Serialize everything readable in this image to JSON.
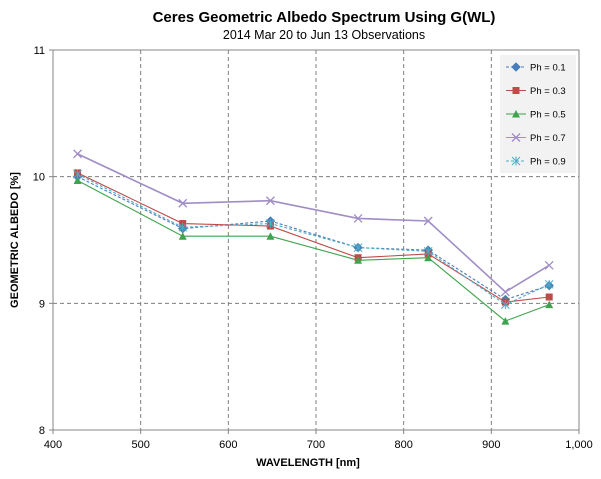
{
  "chart_data": {
    "type": "line",
    "title": "Ceres Geometric Albedo Spectrum Using G(WL)",
    "subtitle": "2014  Mar 20 to Jun 13 Observations",
    "xlabel": "WAVELENGTH [nm]",
    "ylabel": "GEOMETRIC ALBEDO [%]",
    "xlim": [
      400,
      1000
    ],
    "ylim": [
      8,
      11
    ],
    "x_ticks": [
      400,
      500,
      600,
      700,
      800,
      900,
      1000
    ],
    "x_tick_labels": [
      "400",
      "500",
      "600",
      "700",
      "800",
      "900",
      "1,000"
    ],
    "y_ticks": [
      8,
      9,
      10,
      11
    ],
    "y_tick_labels": [
      "8",
      "9",
      "10",
      "11"
    ],
    "grid": "dashed",
    "legend_position": "top-right",
    "x": [
      428,
      548,
      648,
      748,
      828,
      916,
      966
    ],
    "series": [
      {
        "name": "Ph = 0.1",
        "color": "#4a7ebb",
        "line": "dashed",
        "marker": "diamond",
        "values": [
          10.0,
          9.59,
          9.65,
          9.44,
          9.42,
          9.03,
          9.14
        ]
      },
      {
        "name": "Ph = 0.3",
        "color": "#be4b48",
        "line": "solid",
        "marker": "square",
        "values": [
          10.03,
          9.63,
          9.61,
          9.36,
          9.39,
          9.01,
          9.05
        ]
      },
      {
        "name": "Ph = 0.5",
        "color": "#3fa34d",
        "line": "solid",
        "marker": "triangle",
        "values": [
          9.97,
          9.53,
          9.53,
          9.34,
          9.36,
          8.86,
          8.99
        ]
      },
      {
        "name": "Ph = 0.7",
        "color": "#a08dc6",
        "line": "solid",
        "marker": "x",
        "values": [
          10.18,
          9.79,
          9.81,
          9.67,
          9.65,
          9.09,
          9.3
        ]
      },
      {
        "name": "Ph = 0.9",
        "color": "#4bacc6",
        "line": "dashed",
        "marker": "asterisk",
        "values": [
          10.02,
          9.6,
          9.63,
          9.44,
          9.41,
          8.99,
          9.15
        ]
      }
    ]
  }
}
